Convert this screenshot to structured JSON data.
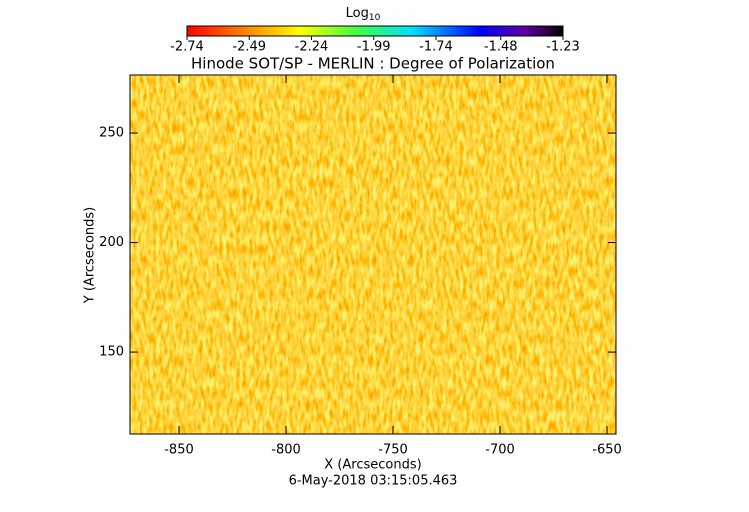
{
  "chart_data": {
    "type": "image",
    "title": "Hinode SOT/SP - MERLIN : Degree of Polarization",
    "colorbar_label": "Log",
    "colorbar_label_subscript": "10",
    "colorbar_lim": [
      -2.74,
      -1.23
    ],
    "colorbar_ticks": [
      -2.74,
      -2.49,
      -2.24,
      -1.99,
      -1.74,
      -1.48,
      -1.23
    ],
    "x_label": "X (Arcseconds)",
    "y_label": "Y (Arcseconds)",
    "xlim": [
      -872.9,
      -645.8
    ],
    "xticks": [
      -850,
      -800,
      -750,
      -700,
      -650
    ],
    "ylim": [
      112.6,
      276.5
    ],
    "yticks": [
      150,
      200,
      250
    ],
    "footer": "6-May-2018 03:15:05.463"
  }
}
